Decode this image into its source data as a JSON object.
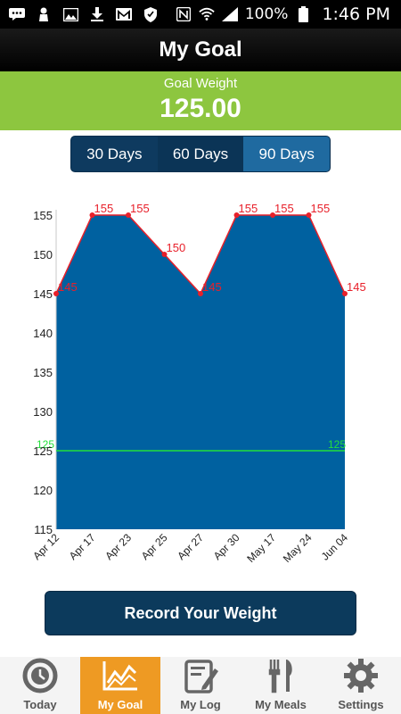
{
  "status_bar": {
    "battery_percent": "100%",
    "time": "1:46 PM",
    "icons": [
      "messages-icon",
      "person-icon",
      "image-icon",
      "download-icon",
      "gmail-icon",
      "shield-icon",
      "nfc-icon",
      "wifi-icon",
      "signal-icon",
      "battery-icon"
    ]
  },
  "header": {
    "title": "My Goal"
  },
  "goal": {
    "label": "Goal Weight",
    "value": "125.00"
  },
  "range_tabs": [
    {
      "label": "30 Days",
      "state": "normal"
    },
    {
      "label": "60 Days",
      "state": "pressed"
    },
    {
      "label": "90 Days",
      "state": "selected"
    }
  ],
  "chart_data": {
    "type": "area",
    "categories": [
      "Apr 12",
      "Apr 17",
      "Apr 23",
      "Apr 25",
      "Apr 27",
      "Apr 30",
      "May 17",
      "May 24",
      "Jun 04"
    ],
    "series": [
      {
        "values": [
          145,
          155,
          155,
          150,
          145,
          155,
          155,
          155,
          145
        ]
      }
    ],
    "data_labels": [
      "145",
      "155",
      "155",
      "150",
      "145",
      "155",
      "155",
      "155",
      "145"
    ],
    "goal_line": {
      "value": 125,
      "labels": [
        "125",
        "125"
      ],
      "color": "#22e03b"
    },
    "ylim": [
      115,
      155
    ],
    "yticks": [
      "155",
      "150",
      "145",
      "140",
      "135",
      "130",
      "125",
      "120",
      "115"
    ],
    "fill_color": "#0061a0",
    "line_color": "#e8202a",
    "grid": false
  },
  "record_button": {
    "label": "Record Your Weight"
  },
  "tab_bar": [
    {
      "label": "Today",
      "icon": "clock-icon",
      "active": false
    },
    {
      "label": "My Goal",
      "icon": "chart-icon",
      "active": true
    },
    {
      "label": "My Log",
      "icon": "log-icon",
      "active": false
    },
    {
      "label": "My Meals",
      "icon": "utensils-icon",
      "active": false
    },
    {
      "label": "Settings",
      "icon": "gear-icon",
      "active": false
    }
  ],
  "colors": {
    "accent_green": "#8dc63f",
    "navy": "#0c3a5c",
    "tab_active": "#ee9a23"
  }
}
